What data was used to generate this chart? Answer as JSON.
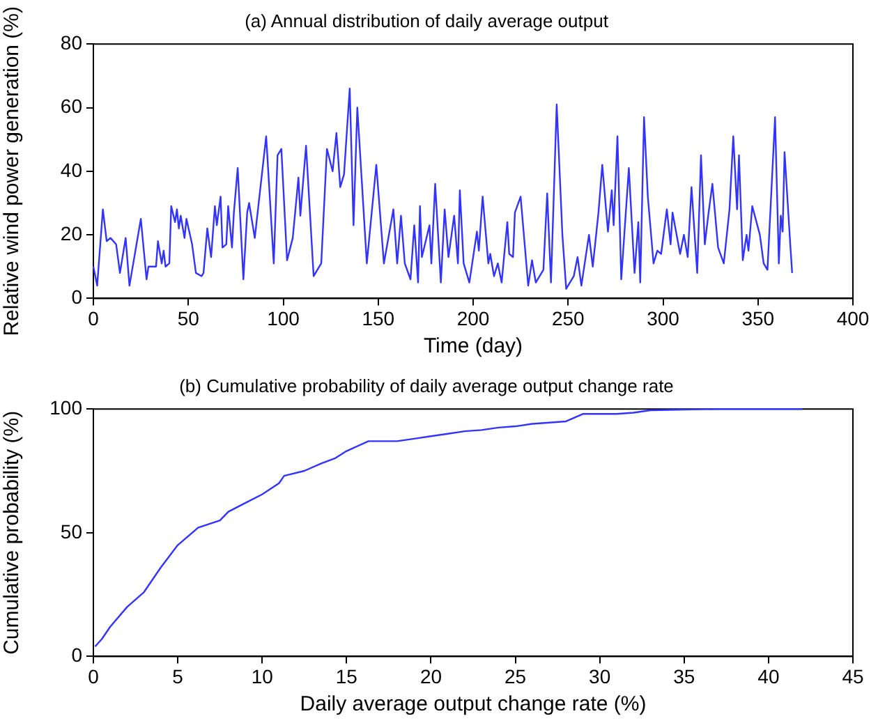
{
  "chart_data": [
    {
      "type": "line",
      "title": "(a) Annual distribution of daily average output",
      "xlabel": "Time (day)",
      "ylabel": "Relative wind power generation (%)",
      "xlim": [
        0,
        400
      ],
      "xticks": [
        0,
        50,
        100,
        150,
        200,
        250,
        300,
        350,
        400
      ],
      "ylim": [
        0,
        80
      ],
      "yticks": [
        0,
        20,
        40,
        60,
        80
      ],
      "legend": false,
      "marker": "none",
      "series": [
        {
          "color": "#3333ff",
          "x": [
            0,
            2,
            5,
            7,
            9,
            12,
            14,
            17,
            19,
            25,
            28,
            29,
            33,
            34,
            36,
            37,
            38,
            40,
            41,
            43,
            44,
            45,
            46,
            48,
            49,
            52,
            54,
            57,
            58,
            60,
            62,
            64,
            65,
            67,
            68,
            70,
            71,
            73,
            74,
            76,
            79,
            81,
            82,
            85,
            88,
            91,
            95,
            97,
            99,
            102,
            105,
            108,
            109,
            112,
            116,
            120,
            123,
            126,
            128,
            130,
            132,
            135,
            137,
            139,
            144,
            149,
            153,
            158,
            160,
            162,
            164,
            167,
            169,
            171,
            172,
            173,
            177,
            178,
            180,
            183,
            185,
            187,
            190,
            192,
            193,
            195,
            198,
            202,
            203,
            205,
            208,
            209,
            211,
            213,
            215,
            218,
            219,
            221,
            222,
            225,
            227,
            229,
            231,
            233,
            237,
            239,
            241,
            244,
            247,
            249,
            253,
            255,
            257,
            261,
            263,
            266,
            268,
            271,
            273,
            274,
            276,
            278,
            282,
            285,
            287,
            288,
            290,
            292,
            295,
            297,
            299,
            302,
            304,
            305,
            309,
            311,
            313,
            315,
            318,
            320,
            322,
            324,
            326,
            329,
            332,
            335,
            337,
            339,
            340,
            342,
            344,
            345,
            347,
            351,
            353,
            355,
            359,
            361,
            362,
            363,
            364,
            367,
            368
          ],
          "values": [
            10,
            4,
            28,
            18,
            19,
            17,
            8,
            19,
            4,
            25,
            6,
            10,
            10,
            18,
            11,
            15,
            10,
            11,
            29,
            24,
            28,
            22,
            26,
            19,
            25,
            17,
            8,
            7,
            8,
            22,
            13,
            29,
            23,
            32,
            16,
            17,
            29,
            16,
            27,
            41,
            6,
            27,
            30,
            19,
            35,
            51,
            11,
            45,
            47,
            12,
            19,
            38,
            26,
            48,
            7,
            11,
            47,
            40,
            52,
            35,
            39,
            66,
            23,
            60,
            11,
            42,
            11,
            28,
            11,
            26,
            11,
            6,
            23,
            5,
            29,
            13,
            23,
            11,
            36,
            5,
            28,
            13,
            26,
            11,
            34,
            11,
            5,
            21,
            15,
            32,
            11,
            14,
            7,
            11,
            5,
            24,
            14,
            13,
            27,
            32,
            18,
            4,
            12,
            5,
            9,
            33,
            5,
            61,
            20,
            3,
            7,
            13,
            4,
            20,
            10,
            27,
            42,
            21,
            34,
            23,
            51,
            6,
            41,
            8,
            24,
            5,
            57,
            32,
            11,
            15,
            14,
            28,
            17,
            27,
            14,
            20,
            13,
            35,
            8,
            45,
            17,
            27,
            36,
            16,
            11,
            28,
            51,
            28,
            45,
            12,
            20,
            15,
            29,
            20,
            11,
            9,
            57,
            11,
            26,
            21,
            46,
            17,
            8
          ]
        }
      ]
    },
    {
      "type": "line",
      "title": "(b) Cumulative probability of daily average output change rate",
      "xlabel": "Daily average output change rate (%)",
      "ylabel": "Cumulative probability (%)",
      "xlim": [
        0,
        45
      ],
      "xticks": [
        0,
        5,
        10,
        15,
        20,
        25,
        30,
        35,
        40,
        45
      ],
      "ylim": [
        0,
        100
      ],
      "yticks": [
        0,
        50,
        100
      ],
      "legend": false,
      "marker": "none",
      "series": [
        {
          "color": "#3333ff",
          "x": [
            0.1,
            0.5,
            1,
            2,
            3,
            4,
            5,
            6.2,
            7.5,
            8,
            9,
            10,
            11,
            11.3,
            12.5,
            13.5,
            14.3,
            15,
            16.3,
            18,
            19,
            20,
            21,
            22,
            23,
            24,
            25,
            26,
            27,
            28,
            28.5,
            29,
            31,
            32,
            33,
            37,
            42
          ],
          "values": [
            4,
            7,
            12,
            20,
            26,
            36,
            45,
            52,
            55,
            58.5,
            62,
            65.5,
            70,
            73,
            75,
            78,
            80,
            83,
            87,
            87,
            88,
            89,
            90,
            91,
            91.5,
            92.5,
            93,
            94,
            94.5,
            95,
            96.5,
            98,
            98,
            98.5,
            99.5,
            100,
            100
          ]
        }
      ]
    }
  ]
}
